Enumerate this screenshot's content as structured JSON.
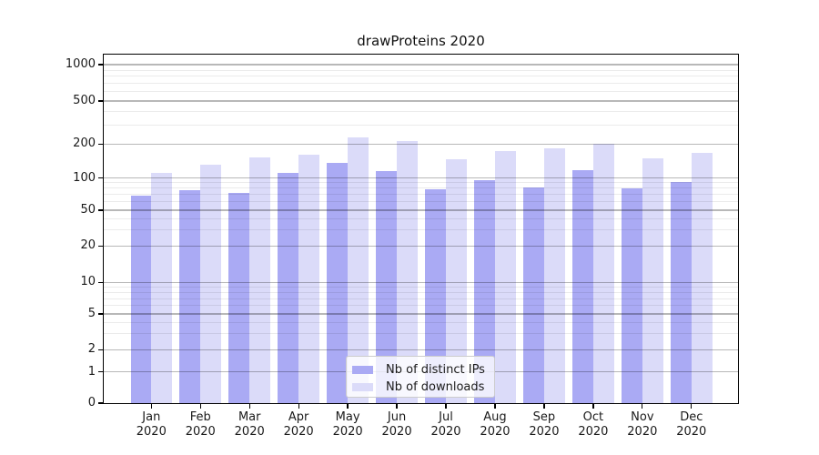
{
  "figure": {
    "title": "drawProteins 2020"
  },
  "chart_data": {
    "type": "bar",
    "title": "drawProteins 2020",
    "categories": [
      "Jan",
      "Feb",
      "Mar",
      "Apr",
      "May",
      "Jun",
      "Jul",
      "Aug",
      "Sep",
      "Oct",
      "Nov",
      "Dec"
    ],
    "year": "2020",
    "series": [
      {
        "name": "Nb of distinct IPs",
        "color": "#aaaaf4",
        "values": [
          68,
          77,
          73,
          111,
          137,
          114,
          78,
          96,
          82,
          117,
          80,
          92
        ]
      },
      {
        "name": "Nb of downloads",
        "color": "#dbdbf9",
        "values": [
          110,
          131,
          152,
          161,
          231,
          214,
          146,
          174,
          184,
          203,
          148,
          166
        ]
      }
    ],
    "y_ticks": [
      0,
      1,
      2,
      5,
      10,
      20,
      50,
      100,
      200,
      500,
      1000
    ],
    "y_minor_ticks": [
      3,
      4,
      6,
      7,
      8,
      9,
      30,
      40,
      60,
      70,
      80,
      90,
      300,
      400,
      600,
      700,
      800,
      900
    ],
    "y_scale": "pseudo-log (1-2-5 sequence, 0 at baseline)",
    "ylim": [
      0,
      1250
    ],
    "grid": true,
    "legend_position": "lower center"
  },
  "legend": {
    "items": [
      {
        "label": "Nb of distinct IPs"
      },
      {
        "label": "Nb of downloads"
      }
    ]
  }
}
